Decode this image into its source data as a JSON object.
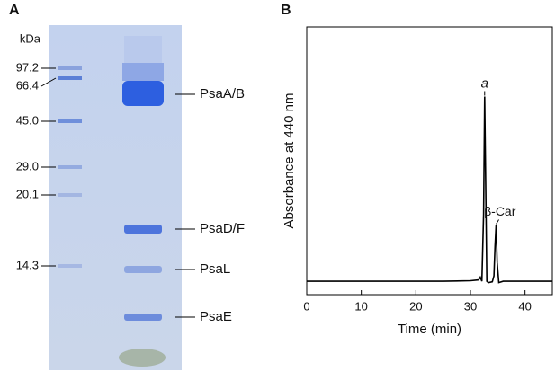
{
  "panel_labels": [
    "A",
    "B"
  ],
  "gel": {
    "unit_label": "kDa",
    "markers": [
      "97.2",
      "66.4",
      "45.0",
      "29.0",
      "20.1",
      "14.3"
    ],
    "bands": [
      "PsaA/B",
      "PsaD/F",
      "PsaL",
      "PsaE"
    ]
  },
  "chart_data": {
    "type": "line",
    "xlabel": "Time (min)",
    "ylabel": "Absorbance at 440 nm",
    "xlim": [
      0,
      45
    ],
    "xticks": [
      0,
      10,
      20,
      30,
      40
    ],
    "ylim": [
      0,
      100
    ],
    "annotations": [
      "a",
      "β-Car"
    ],
    "series": [
      {
        "name": "trace",
        "color": "#000000",
        "x": [
          0,
          5,
          10,
          15,
          20,
          25,
          30,
          31.5,
          31.8,
          32.1,
          32.4,
          32.6,
          32.8,
          33.0,
          33.3,
          34.0,
          34.3,
          34.5,
          34.7,
          34.9,
          35.2,
          36,
          40,
          45
        ],
        "values": [
          5,
          5,
          5,
          5,
          5,
          5,
          5.2,
          5.5,
          6.5,
          5,
          30,
          74,
          40,
          5,
          4.5,
          4.8,
          7,
          18,
          26,
          12,
          4.5,
          5,
          5,
          5
        ]
      }
    ]
  }
}
